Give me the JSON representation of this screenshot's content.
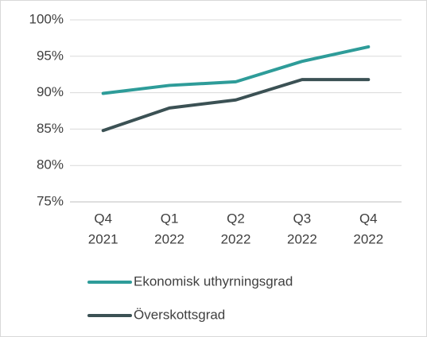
{
  "chart_data": {
    "type": "line",
    "categories": [
      [
        "Q4",
        "2021"
      ],
      [
        "Q1",
        "2022"
      ],
      [
        "Q2",
        "2022"
      ],
      [
        "Q3",
        "2022"
      ],
      [
        "Q4",
        "2022"
      ]
    ],
    "series": [
      {
        "name": "Ekonomisk uthyrningsgrad",
        "color": "#2e9c99",
        "values": [
          89.9,
          91.0,
          91.5,
          94.3,
          96.3
        ]
      },
      {
        "name": "Överskottsgrad",
        "color": "#3b5154",
        "values": [
          84.8,
          87.9,
          89.0,
          91.8,
          91.8
        ]
      }
    ],
    "ylim": [
      75,
      100
    ],
    "yticks": [
      {
        "value": 75,
        "label": "75%"
      },
      {
        "value": 80,
        "label": "80%"
      },
      {
        "value": 85,
        "label": "85%"
      },
      {
        "value": 90,
        "label": "90%"
      },
      {
        "value": 95,
        "label": "95%"
      },
      {
        "value": 100,
        "label": "100%"
      }
    ],
    "grid": true
  }
}
